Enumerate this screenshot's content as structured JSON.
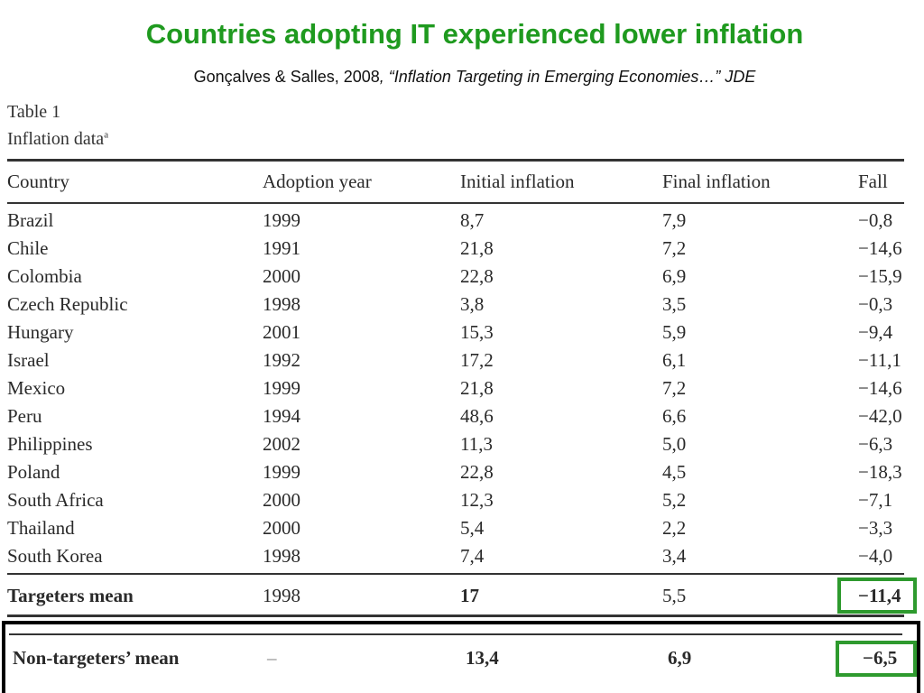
{
  "slide": {
    "title": "Countries adopting IT experienced lower inflation",
    "citation_authors": "Gonçalves & Salles, 2008",
    "citation_sep": ", ",
    "citation_article": "“Inflation Targeting in Emerging Economies…”",
    "citation_journal": "JDE"
  },
  "table": {
    "caption_line1": "Table 1",
    "caption_line2": "Inflation data",
    "caption_sup": "a",
    "headers": [
      "Country",
      "Adoption year",
      "Initial inflation",
      "Final inflation",
      "Fall"
    ],
    "rows": [
      [
        "Brazil",
        "1999",
        "8,7",
        "7,9",
        "−0,8"
      ],
      [
        "Chile",
        "1991",
        "21,8",
        "7,2",
        "−14,6"
      ],
      [
        "Colombia",
        "2000",
        "22,8",
        "6,9",
        "−15,9"
      ],
      [
        "Czech Republic",
        "1998",
        "3,8",
        "3,5",
        "−0,3"
      ],
      [
        "Hungary",
        "2001",
        "15,3",
        "5,9",
        "−9,4"
      ],
      [
        "Israel",
        "1992",
        "17,2",
        "6,1",
        "−11,1"
      ],
      [
        "Mexico",
        "1999",
        "21,8",
        "7,2",
        "−14,6"
      ],
      [
        "Peru",
        "1994",
        "48,6",
        "6,6",
        "−42,0"
      ],
      [
        "Philippines",
        "2002",
        "11,3",
        "5,0",
        "−6,3"
      ],
      [
        "Poland",
        "1999",
        "22,8",
        "4,5",
        "−18,3"
      ],
      [
        "South Africa",
        "2000",
        "12,3",
        "5,2",
        "−7,1"
      ],
      [
        "Thailand",
        "2000",
        "5,4",
        "2,2",
        "−3,3"
      ],
      [
        "South Korea",
        "1998",
        "7,4",
        "3,4",
        "−4,0"
      ]
    ],
    "targeters_mean": [
      "Targeters mean",
      "1998",
      "17",
      "5,5",
      "−11,4"
    ],
    "non_targeters_mean": [
      "Non-targeters’ mean",
      "–",
      "13,4",
      "6,9",
      "−6,5"
    ]
  },
  "colors": {
    "title": "#1f9a1f",
    "highlight_box": "#2e9a2e",
    "emphasis_box": "#000000"
  }
}
